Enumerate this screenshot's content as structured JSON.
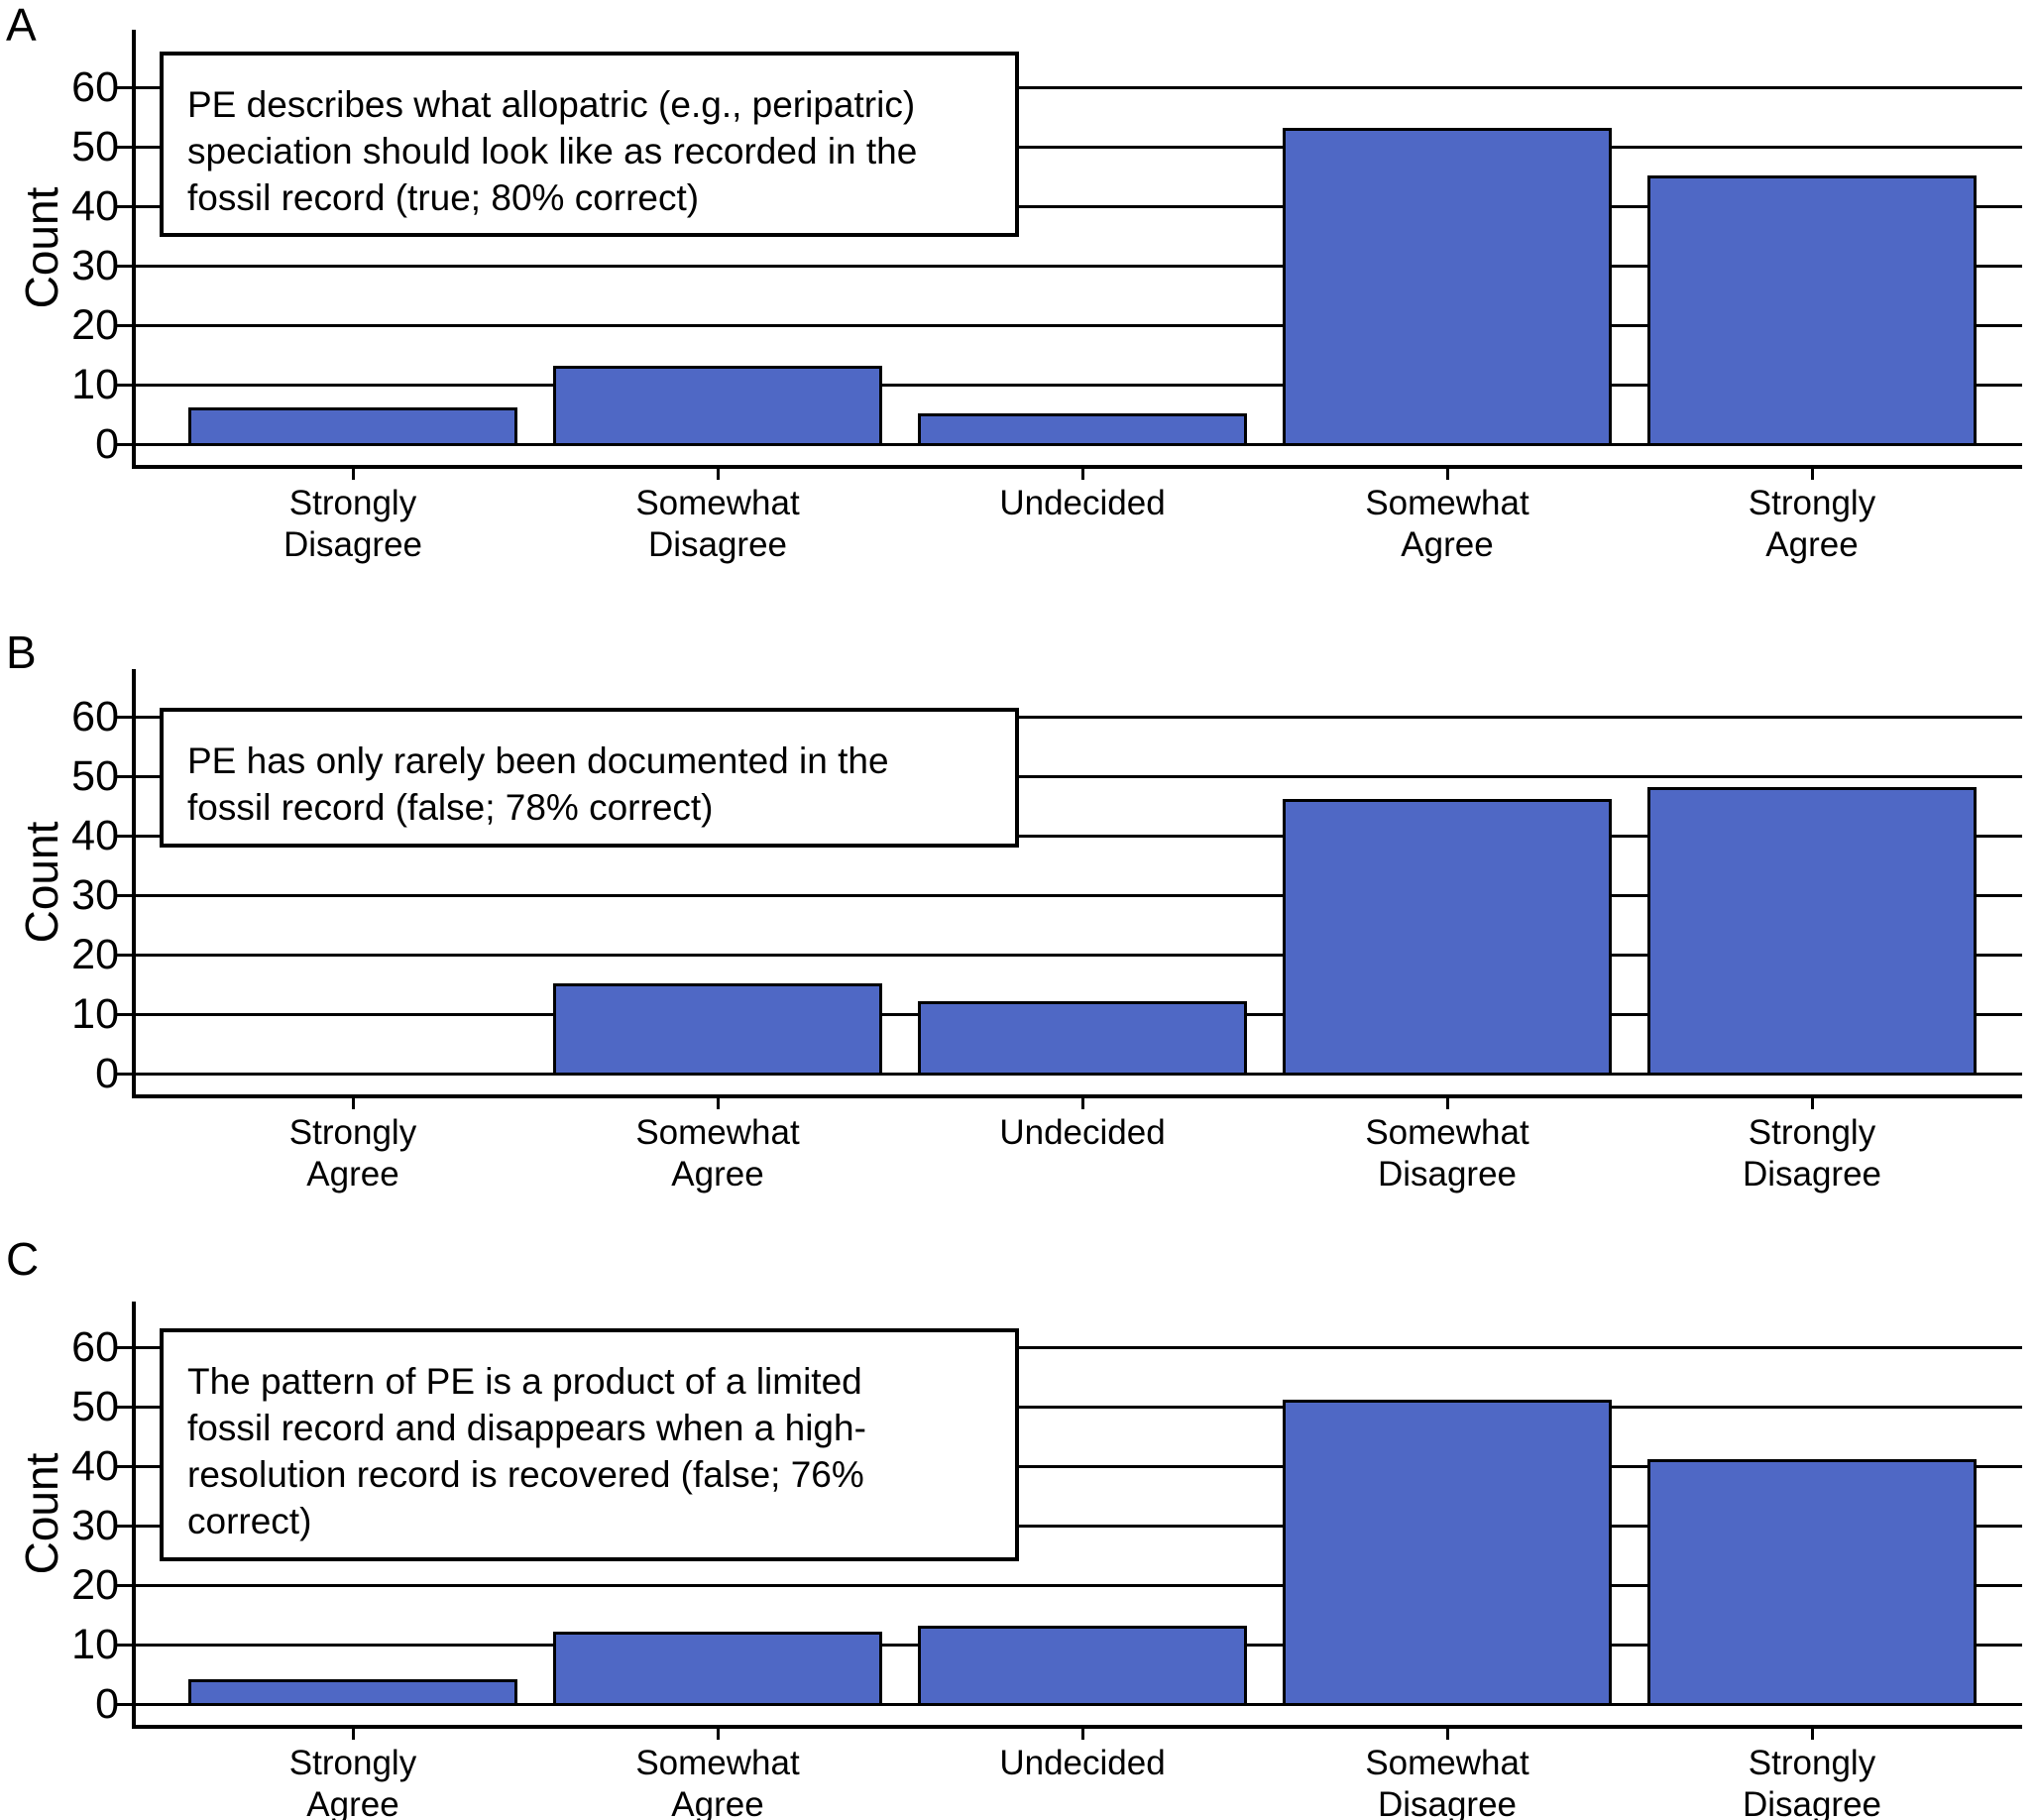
{
  "chart_data": [
    {
      "type": "bar",
      "panel_label": "A",
      "annotation": "PE describes what allopatric (e.g., peripatric)\nspeciation should look like as recorded in the\nfossil record (true; 80% correct)",
      "categories": [
        "Strongly\nDisagree",
        "Somewhat\nDisagree",
        "Undecided",
        "Somewhat\nAgree",
        "Strongly\nAgree"
      ],
      "values": [
        6,
        13,
        5,
        53,
        45
      ],
      "ylabel": "Count",
      "yticks": [
        0,
        10,
        20,
        30,
        40,
        50,
        60
      ],
      "ylim": [
        0,
        66
      ],
      "grid": "horizontal",
      "legend": "none",
      "bar_color": "#4F68C5",
      "bar_border_color": "#000000"
    },
    {
      "type": "bar",
      "panel_label": "B",
      "annotation": "PE has only rarely been documented in the\nfossil record (false; 78% correct)",
      "categories": [
        "Strongly\nAgree",
        "Somewhat\nAgree",
        "Undecided",
        "Somewhat\nDisagree",
        "Strongly\nDisagree"
      ],
      "values": [
        0,
        15,
        12,
        46,
        48
      ],
      "ylabel": "Count",
      "yticks": [
        0,
        10,
        20,
        30,
        40,
        50,
        60
      ],
      "ylim": [
        0,
        66
      ],
      "grid": "horizontal",
      "legend": "none",
      "bar_color": "#4F68C5",
      "bar_border_color": "#000000"
    },
    {
      "type": "bar",
      "panel_label": "C",
      "annotation": "The pattern of PE is a product of a limited\nfossil record and disappears when a high-\nresolution record is recovered (false; 76%\ncorrect)",
      "categories": [
        "Strongly\nAgree",
        "Somewhat\nAgree",
        "Undecided",
        "Somewhat\nDisagree",
        "Strongly\nDisagree"
      ],
      "values": [
        4,
        12,
        13,
        51,
        41
      ],
      "ylabel": "Count",
      "yticks": [
        0,
        10,
        20,
        30,
        40,
        50,
        60
      ],
      "ylim": [
        0,
        66
      ],
      "grid": "horizontal",
      "legend": "none",
      "bar_color": "#4F68C5",
      "bar_border_color": "#000000"
    }
  ]
}
